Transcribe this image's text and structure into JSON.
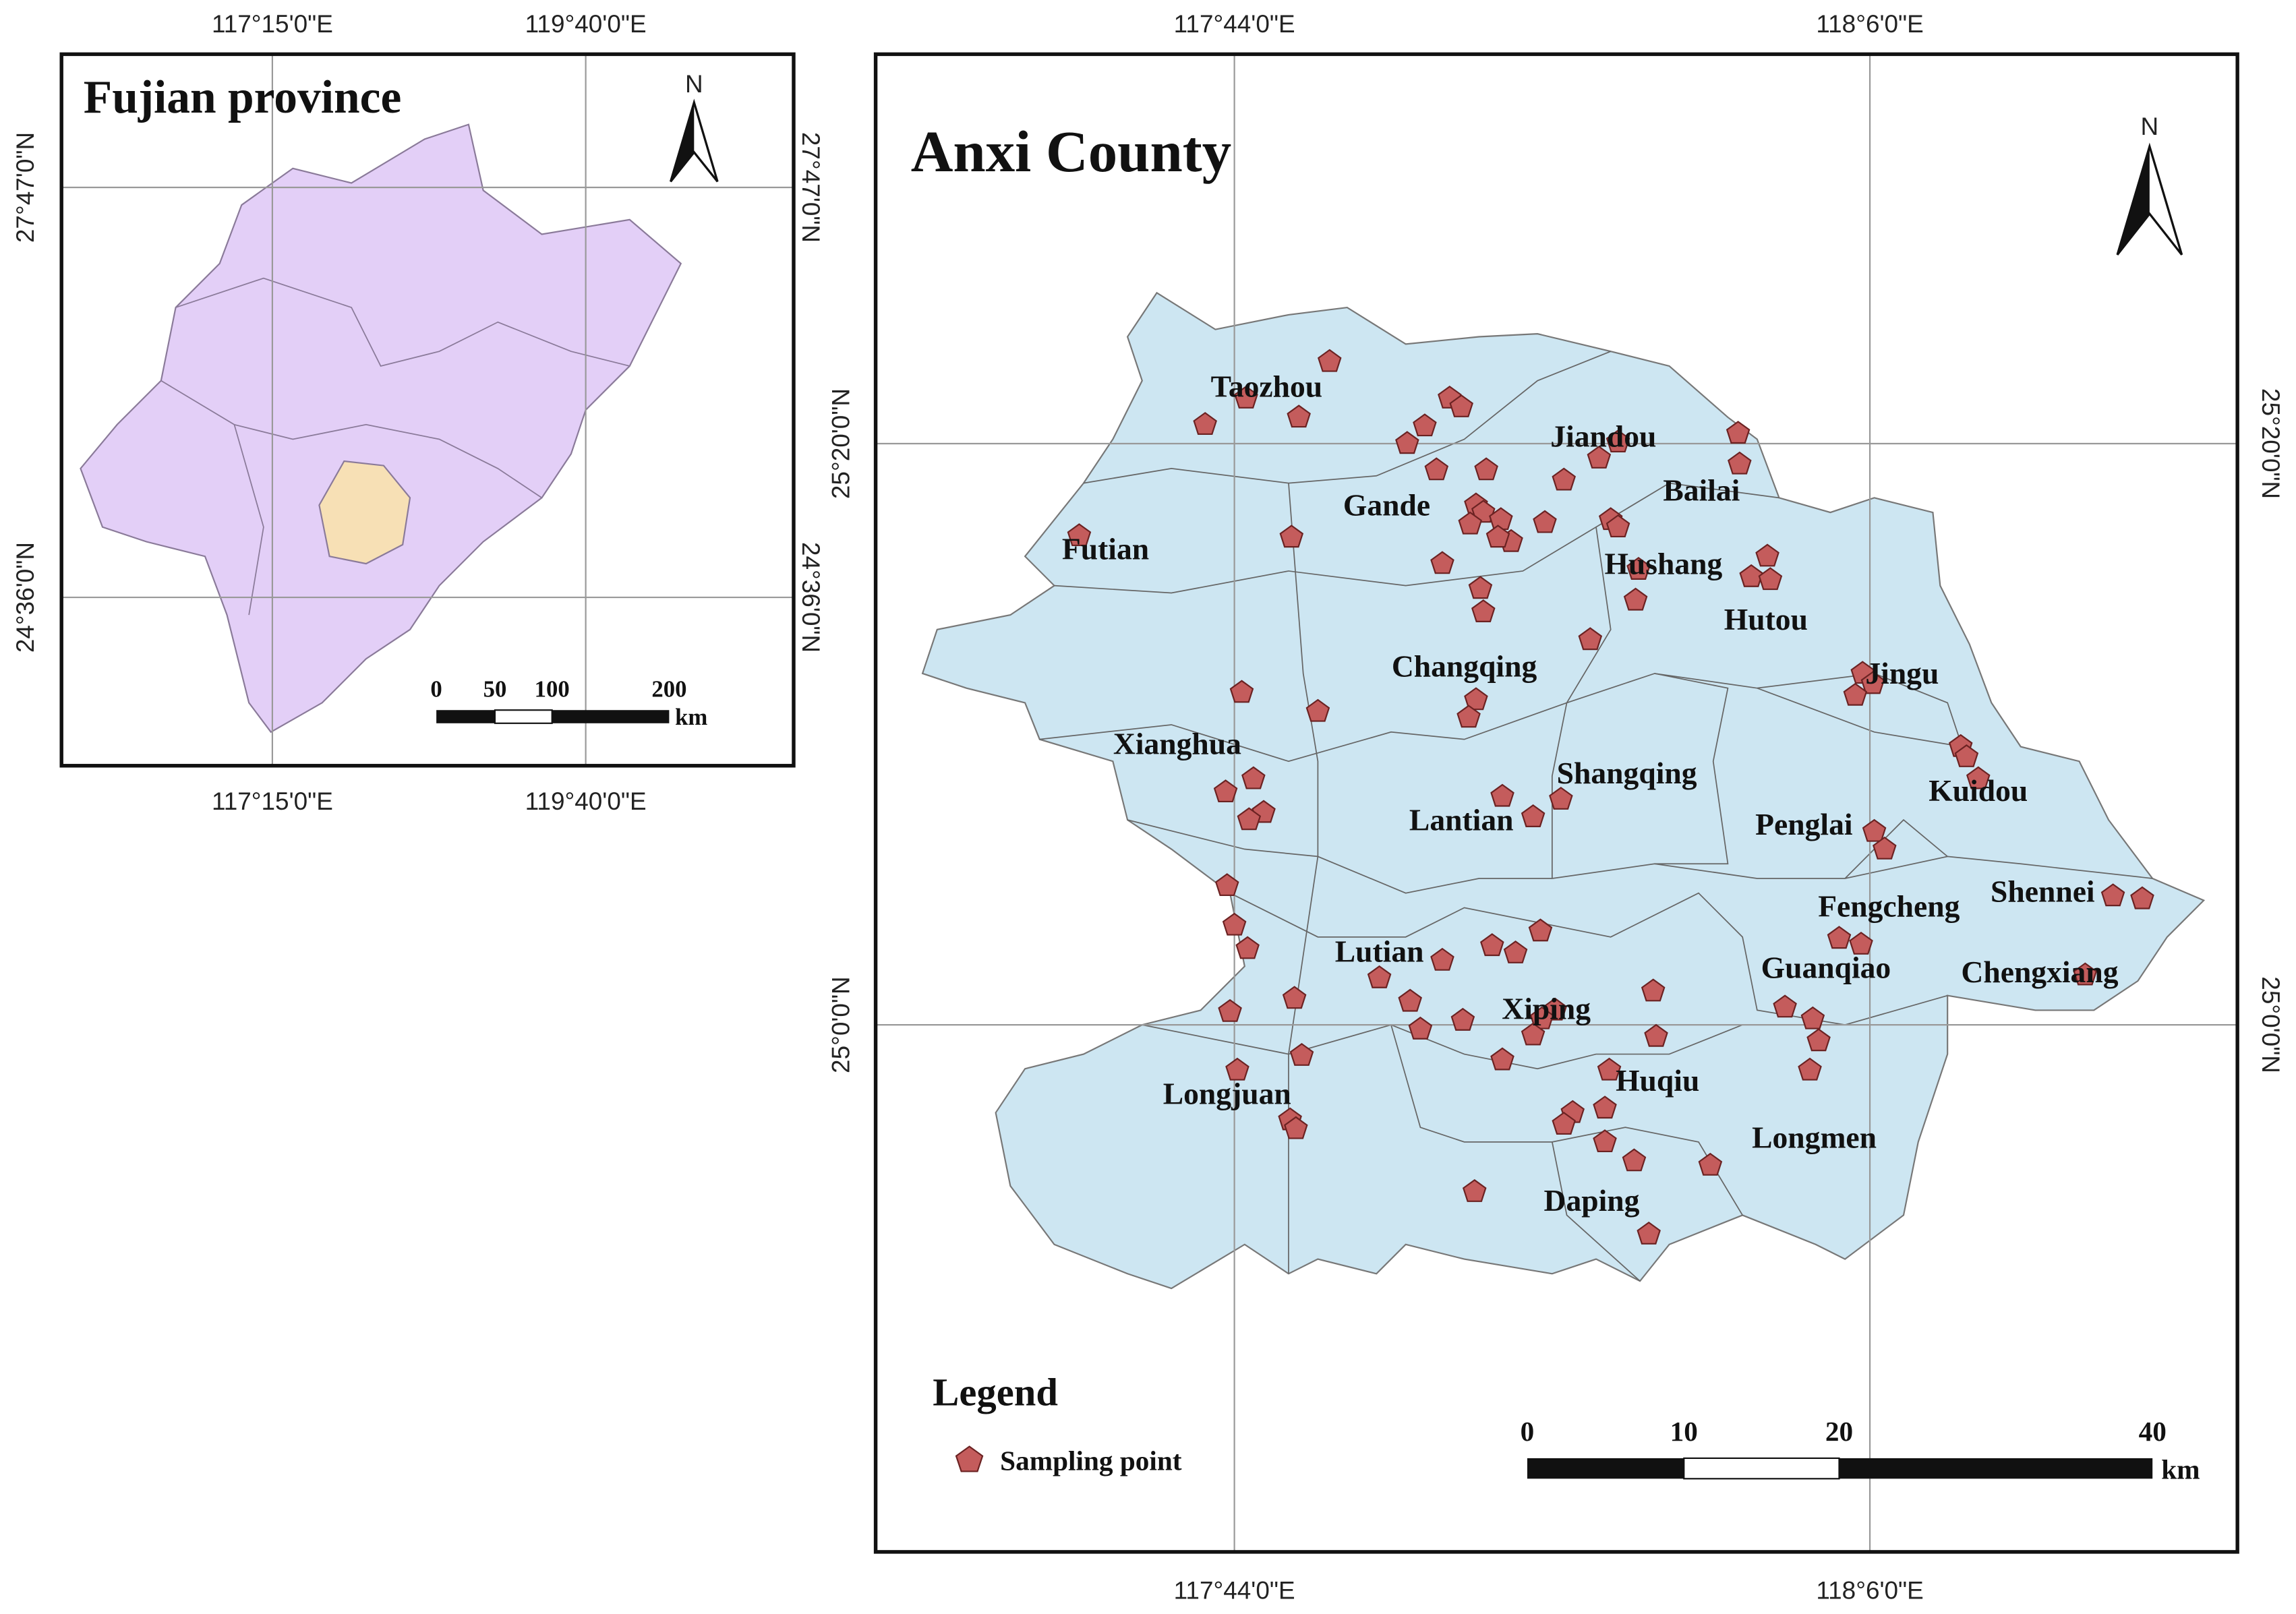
{
  "inset": {
    "title": "Fujian province",
    "north": "N",
    "x_labels_top": [
      "117°15'0\"E",
      "119°40'0\"E"
    ],
    "x_labels_bottom": [
      "117°15'0\"E",
      "119°40'0\"E"
    ],
    "y_labels_left": [
      "27°47'0\"N",
      "24°36'0\"N"
    ],
    "y_labels_right": [
      "27°47'0\"N",
      "24°36'0\"N"
    ],
    "scale": {
      "ticks": [
        "0",
        "50",
        "100",
        "200"
      ],
      "unit": "km"
    }
  },
  "main": {
    "title": "Anxi County",
    "north": "N",
    "x_labels_top": [
      "117°44'0\"E",
      "118°6'0\"E"
    ],
    "x_labels_bottom": [
      "117°44'0\"E",
      "118°6'0\"E"
    ],
    "y_labels_left": [
      "25°20'0\"N",
      "25°0'0\"N"
    ],
    "y_labels_right": [
      "25°20'0\"N",
      "25°0'0\"N"
    ],
    "towns": [
      "Taozhou",
      "Jiandou",
      "Bailai",
      "Gande",
      "Futian",
      "Hushang",
      "Hutou",
      "Changqing",
      "Jingu",
      "Xianghua",
      "Shangqing",
      "Kuidou",
      "Lantian",
      "Penglai",
      "Shennei",
      "Fengcheng",
      "Lutian",
      "Guanqiao",
      "Chengxiang",
      "Xiping",
      "Longjuan",
      "Huqiu",
      "Longmen",
      "Daping"
    ],
    "scale": {
      "ticks": [
        "0",
        "10",
        "20",
        "40"
      ],
      "unit": "km"
    }
  },
  "legend": {
    "title": "Legend",
    "items": [
      "Sampling point"
    ]
  }
}
